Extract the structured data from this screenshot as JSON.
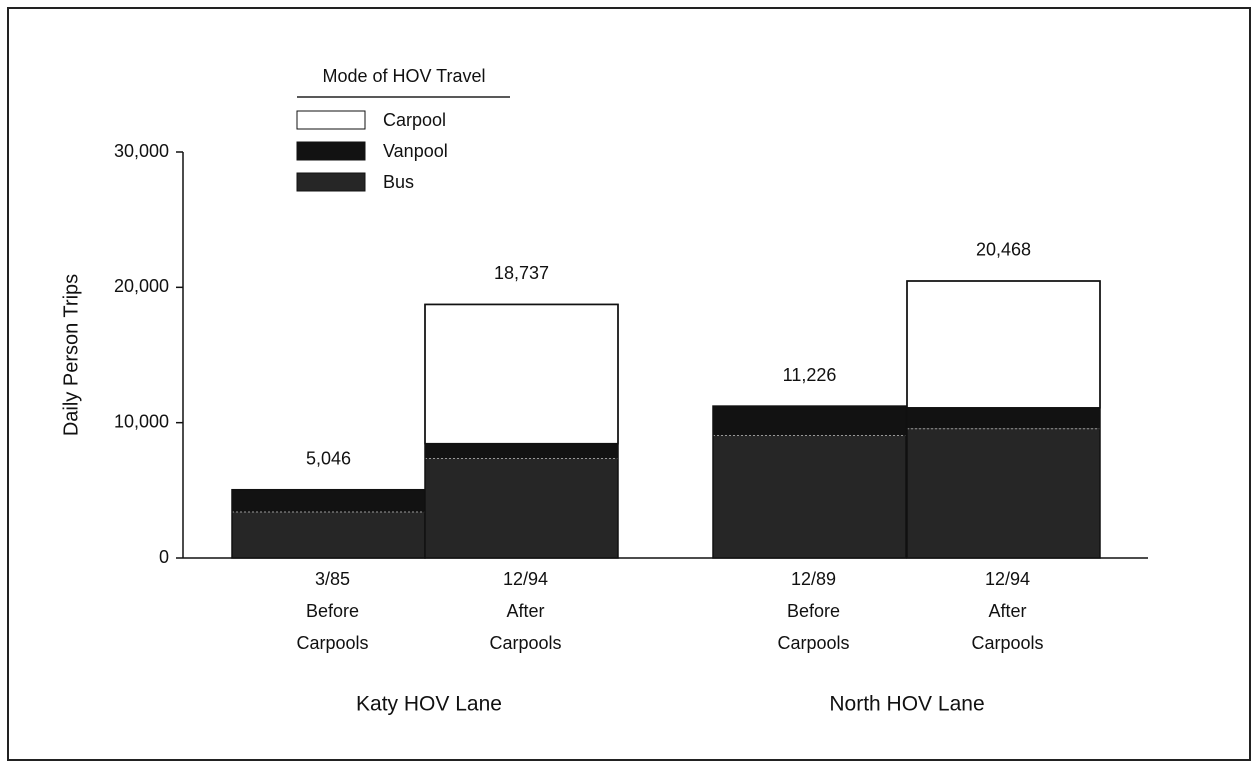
{
  "chart_data": {
    "type": "stacked_bar",
    "y_label": "Daily Person Trips",
    "legend_title": "Mode of HOV Travel",
    "groups": [
      "Katy HOV Lane",
      "North HOV Lane"
    ],
    "categories": [
      [
        "3/85",
        "Before",
        "Carpools"
      ],
      [
        "12/94",
        "After",
        "Carpools"
      ],
      [
        "12/89",
        "Before",
        "Carpools"
      ],
      [
        "12/94",
        "After",
        "Carpools"
      ]
    ],
    "series": [
      {
        "name": "Bus",
        "color": "#262626",
        "values": [
          3400,
          7350,
          9050,
          9550
        ]
      },
      {
        "name": "Vanpool",
        "color": "#121212",
        "values": [
          1646,
          1100,
          2176,
          1550
        ]
      },
      {
        "name": "Carpool",
        "color": "#ffffff",
        "values": [
          0,
          10287,
          0,
          9368
        ]
      }
    ],
    "totals": [
      5046,
      18737,
      11226,
      20468
    ],
    "total_labels": [
      "5,046",
      "18,737",
      "11,226",
      "20,468"
    ],
    "ylim": [
      0,
      30000
    ],
    "yticks": [
      0,
      {
        "value": 10000,
        "label": "10,000"
      },
      {
        "value": 20000,
        "label": "20,000"
      },
      {
        "value": 30000,
        "label": "30,000"
      }
    ]
  }
}
